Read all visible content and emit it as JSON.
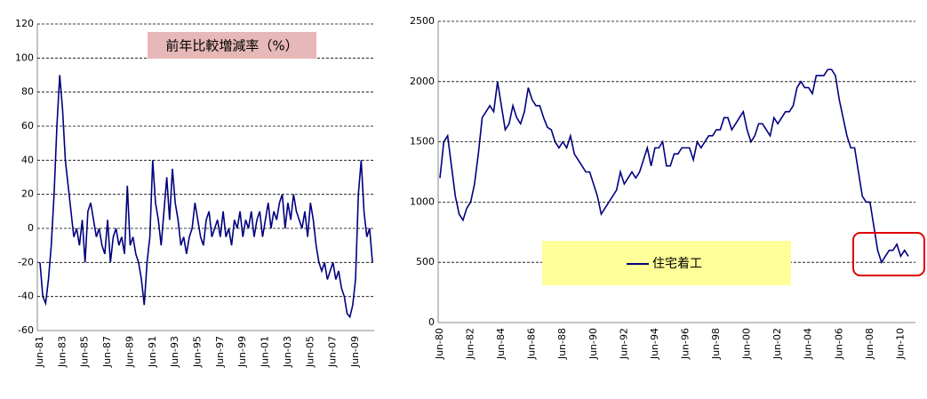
{
  "chart_data": [
    {
      "type": "line",
      "annotation": "前年比較増減率（%）",
      "categories": [
        "Jun-81",
        null,
        null,
        null,
        null,
        null,
        null,
        null,
        "Jun-83",
        null,
        null,
        null,
        null,
        null,
        null,
        null,
        "Jun-85",
        null,
        null,
        null,
        null,
        null,
        null,
        null,
        "Jun-87",
        null,
        null,
        null,
        null,
        null,
        null,
        null,
        "Jun-89",
        null,
        null,
        null,
        null,
        null,
        null,
        null,
        "Jun-91",
        null,
        null,
        null,
        null,
        null,
        null,
        null,
        "Jun-93",
        null,
        null,
        null,
        null,
        null,
        null,
        null,
        "Jun-95",
        null,
        null,
        null,
        null,
        null,
        null,
        null,
        "Jun-97",
        null,
        null,
        null,
        null,
        null,
        null,
        null,
        "Jun-99",
        null,
        null,
        null,
        null,
        null,
        null,
        null,
        "Jun-01",
        null,
        null,
        null,
        null,
        null,
        null,
        null,
        "Jun-03",
        null,
        null,
        null,
        null,
        null,
        null,
        null,
        "Jun-05",
        null,
        null,
        null,
        null,
        null,
        null,
        null,
        "Jun-07",
        null,
        null,
        null,
        null,
        null,
        null,
        null,
        "Jun-09",
        null,
        null,
        null,
        null,
        null,
        null
      ],
      "series": [
        {
          "color": "#000080",
          "values": [
            -20,
            -40,
            -44,
            -30,
            -10,
            20,
            60,
            90,
            70,
            40,
            25,
            10,
            -5,
            0,
            -10,
            5,
            -20,
            10,
            15,
            5,
            -5,
            0,
            -10,
            -15,
            5,
            -20,
            -5,
            0,
            -10,
            -5,
            -15,
            25,
            -10,
            -5,
            -15,
            -20,
            -30,
            -45,
            -20,
            -5,
            40,
            15,
            5,
            -10,
            10,
            30,
            5,
            35,
            15,
            5,
            -10,
            -5,
            -15,
            -5,
            0,
            15,
            5,
            -5,
            -10,
            5,
            10,
            -5,
            0,
            5,
            -5,
            10,
            -5,
            0,
            -10,
            5,
            0,
            10,
            -5,
            5,
            0,
            10,
            -5,
            5,
            10,
            -5,
            5,
            15,
            0,
            10,
            5,
            15,
            20,
            0,
            15,
            5,
            20,
            10,
            5,
            0,
            10,
            -5,
            15,
            5,
            -10,
            -20,
            -25,
            -20,
            -30,
            -25,
            -20,
            -30,
            -25,
            -35,
            -40,
            -50,
            -52,
            -45,
            -30,
            20,
            40,
            10,
            -5,
            0,
            -20
          ]
        }
      ],
      "ylim": [
        -60,
        120
      ],
      "yticks": [
        -60,
        -40,
        -20,
        0,
        20,
        40,
        60,
        80,
        100,
        120
      ],
      "grid": true
    },
    {
      "type": "line",
      "categories": [
        "Jun-80",
        null,
        null,
        null,
        null,
        null,
        null,
        null,
        "Jun-82",
        null,
        null,
        null,
        null,
        null,
        null,
        null,
        "Jun-84",
        null,
        null,
        null,
        null,
        null,
        null,
        null,
        "Jun-86",
        null,
        null,
        null,
        null,
        null,
        null,
        null,
        "Jun-88",
        null,
        null,
        null,
        null,
        null,
        null,
        null,
        "Jun-90",
        null,
        null,
        null,
        null,
        null,
        null,
        null,
        "Jun-92",
        null,
        null,
        null,
        null,
        null,
        null,
        null,
        "Jun-94",
        null,
        null,
        null,
        null,
        null,
        null,
        null,
        "Jun-96",
        null,
        null,
        null,
        null,
        null,
        null,
        null,
        "Jun-98",
        null,
        null,
        null,
        null,
        null,
        null,
        null,
        "Jun-00",
        null,
        null,
        null,
        null,
        null,
        null,
        null,
        "Jun-02",
        null,
        null,
        null,
        null,
        null,
        null,
        null,
        "Jun-04",
        null,
        null,
        null,
        null,
        null,
        null,
        null,
        "Jun-06",
        null,
        null,
        null,
        null,
        null,
        null,
        null,
        "Jun-08",
        null,
        null,
        null,
        null,
        null,
        null,
        null,
        "Jun-10",
        null,
        null
      ],
      "series": [
        {
          "name": "住宅着工",
          "color": "#000080",
          "values": [
            1200,
            1500,
            1550,
            1300,
            1050,
            900,
            850,
            950,
            1000,
            1150,
            1400,
            1700,
            1750,
            1800,
            1750,
            2000,
            1800,
            1600,
            1650,
            1800,
            1700,
            1650,
            1750,
            1950,
            1850,
            1800,
            1800,
            1700,
            1620,
            1600,
            1500,
            1450,
            1500,
            1450,
            1550,
            1400,
            1350,
            1300,
            1250,
            1250,
            1150,
            1050,
            900,
            950,
            1000,
            1050,
            1100,
            1250,
            1150,
            1200,
            1250,
            1200,
            1250,
            1350,
            1450,
            1300,
            1450,
            1450,
            1500,
            1300,
            1300,
            1400,
            1400,
            1450,
            1450,
            1450,
            1350,
            1500,
            1450,
            1500,
            1550,
            1550,
            1600,
            1600,
            1700,
            1700,
            1600,
            1650,
            1700,
            1750,
            1600,
            1500,
            1550,
            1650,
            1650,
            1600,
            1550,
            1700,
            1650,
            1700,
            1750,
            1750,
            1800,
            1950,
            2000,
            1950,
            1950,
            1900,
            2050,
            2050,
            2050,
            2100,
            2100,
            2050,
            1850,
            1700,
            1550,
            1450,
            1450,
            1250,
            1050,
            1000,
            1000,
            800,
            600,
            500,
            550,
            600,
            600,
            650,
            550,
            600,
            550
          ]
        }
      ],
      "ylim": [
        0,
        2500
      ],
      "yticks": [
        0,
        500,
        1000,
        1500,
        2000,
        2500
      ],
      "grid": true
    }
  ]
}
